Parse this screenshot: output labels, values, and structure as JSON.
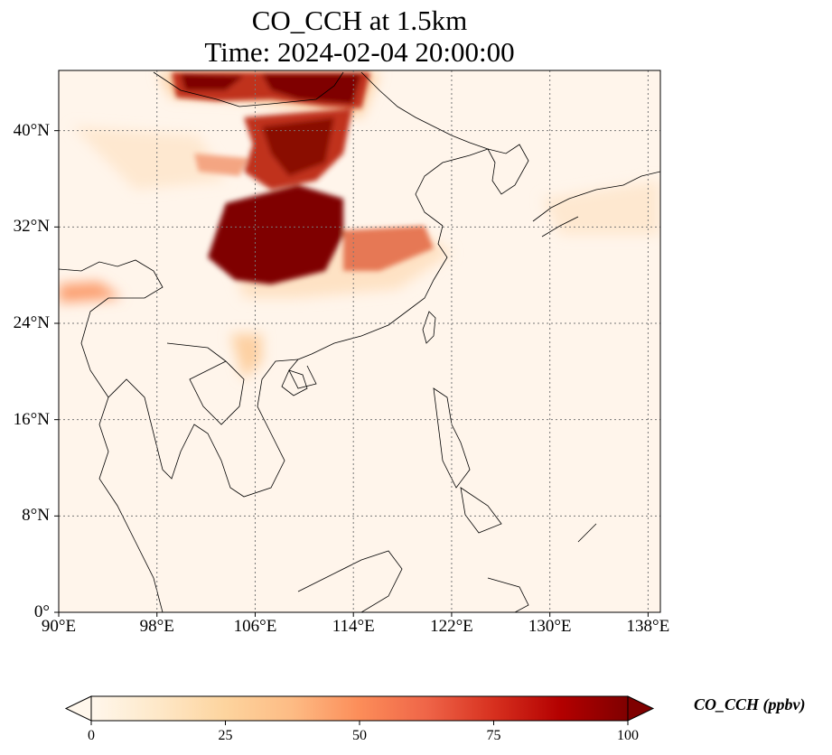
{
  "title": {
    "line1": "CO_CCH at 1.5km",
    "line2": "Time: 2024-02-04 20:00:00"
  },
  "map": {
    "projection": "PlateCarree",
    "lon_range": [
      90,
      139
    ],
    "lat_range": [
      0,
      45
    ],
    "gridlines": "dotted",
    "background_color": "#fff5eb",
    "lon_ticks": [
      {
        "value": 90,
        "label": "90°E"
      },
      {
        "value": 98,
        "label": "98°E"
      },
      {
        "value": 106,
        "label": "106°E"
      },
      {
        "value": 114,
        "label": "114°E"
      },
      {
        "value": 122,
        "label": "122°E"
      },
      {
        "value": 130,
        "label": "130°E"
      },
      {
        "value": 138,
        "label": "138°E"
      }
    ],
    "lat_ticks": [
      {
        "value": 40,
        "label": "40°N"
      },
      {
        "value": 32,
        "label": "32°N"
      },
      {
        "value": 24,
        "label": "24°N"
      },
      {
        "value": 16,
        "label": "16°N"
      },
      {
        "value": 8,
        "label": "8°N"
      },
      {
        "value": 0,
        "label": "0°"
      }
    ]
  },
  "colorbar": {
    "label": "CO_CCH (ppbv)",
    "colormap": "OrRd",
    "min": 0,
    "max": 100,
    "extend": "both",
    "ticks": [
      {
        "value": 0,
        "label": "0"
      },
      {
        "value": 25,
        "label": "25"
      },
      {
        "value": 50,
        "label": "50"
      },
      {
        "value": 75,
        "label": "75"
      },
      {
        "value": 100,
        "label": "100"
      }
    ],
    "colors": [
      "#fff7ec",
      "#fee8c8",
      "#fdd49e",
      "#fdbb84",
      "#fc8d59",
      "#ef6548",
      "#d7301f",
      "#b30000",
      "#7f0000"
    ]
  },
  "field_features": [
    {
      "name": "Sichuan Basin maximum",
      "lon": 106,
      "lat": 30,
      "value": 100
    },
    {
      "name": "Northern plume",
      "lon": 109,
      "lat": 39,
      "value": 90
    },
    {
      "name": "Mongolia plume",
      "lon": 106,
      "lat": 43.5,
      "value": 80
    },
    {
      "name": "Yangtze band",
      "lon": 114,
      "lat": 29.5,
      "value": 50
    },
    {
      "name": "Bay of Bengal band",
      "lon": 92,
      "lat": 26.5,
      "value": 35
    },
    {
      "name": "Eastern sea band",
      "lon": 126,
      "lat": 30,
      "value": 12
    }
  ]
}
